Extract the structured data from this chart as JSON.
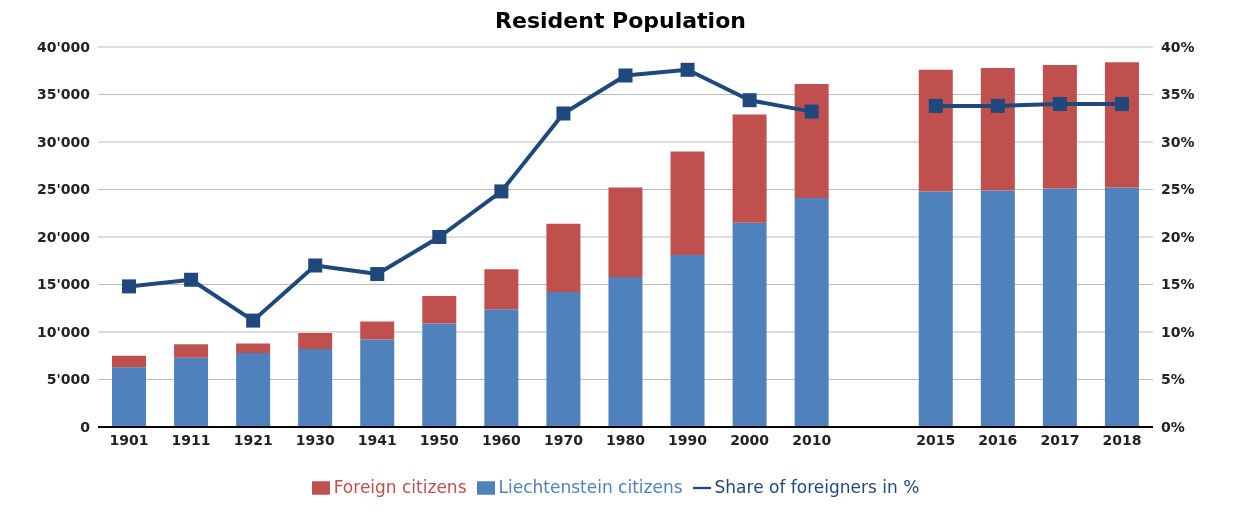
{
  "chart_data": {
    "type": "bar",
    "title": "Resident Population",
    "categories": [
      "1901",
      "1911",
      "1921",
      "1930",
      "1941",
      "1950",
      "1960",
      "1970",
      "1980",
      "1990",
      "2000",
      "2010",
      null,
      "2015",
      "2016",
      "2017",
      "2018"
    ],
    "stacked": true,
    "series": [
      {
        "name": "Liechtenstein citizens",
        "color": "#4f81bd",
        "values": [
          6300,
          7300,
          7800,
          8200,
          9200,
          10900,
          12400,
          14200,
          15800,
          18100,
          21500,
          24100,
          null,
          24800,
          24900,
          25100,
          25200
        ]
      },
      {
        "name": "Foreign citizens",
        "color": "#c0504d",
        "values": [
          1200,
          1400,
          1000,
          1700,
          1900,
          2900,
          4200,
          7200,
          9400,
          10900,
          11400,
          12000,
          null,
          12800,
          12900,
          13000,
          13200
        ]
      },
      {
        "name": "Share of foreigners in %",
        "type": "line",
        "axis": "y2",
        "color": "#1f497d",
        "marker": "square",
        "values": [
          14.8,
          15.5,
          11.2,
          17.0,
          16.1,
          20.0,
          24.8,
          33.0,
          37.0,
          37.6,
          34.4,
          33.2,
          null,
          33.8,
          33.8,
          34.0,
          34.0
        ]
      }
    ],
    "ylim": [
      0,
      40000
    ],
    "yticks": [
      {
        "value": 0,
        "label": "0"
      },
      {
        "value": 5000,
        "label": "5'000"
      },
      {
        "value": 10000,
        "label": "10'000"
      },
      {
        "value": 15000,
        "label": "15'000"
      },
      {
        "value": 20000,
        "label": "20'000"
      },
      {
        "value": 25000,
        "label": "25'000"
      },
      {
        "value": 30000,
        "label": "30'000"
      },
      {
        "value": 35000,
        "label": "35'000"
      },
      {
        "value": 40000,
        "label": "40'000"
      }
    ],
    "y2lim": [
      0,
      40
    ],
    "y2ticks": [
      {
        "value": 0,
        "label": "0%"
      },
      {
        "value": 5,
        "label": "5%"
      },
      {
        "value": 10,
        "label": "10%"
      },
      {
        "value": 15,
        "label": "15%"
      },
      {
        "value": 20,
        "label": "20%"
      },
      {
        "value": 25,
        "label": "25%"
      },
      {
        "value": 30,
        "label": "30%"
      },
      {
        "value": 35,
        "label": "35%"
      },
      {
        "value": 40,
        "label": "40%"
      }
    ],
    "grid": "y",
    "legend": "bottom"
  }
}
